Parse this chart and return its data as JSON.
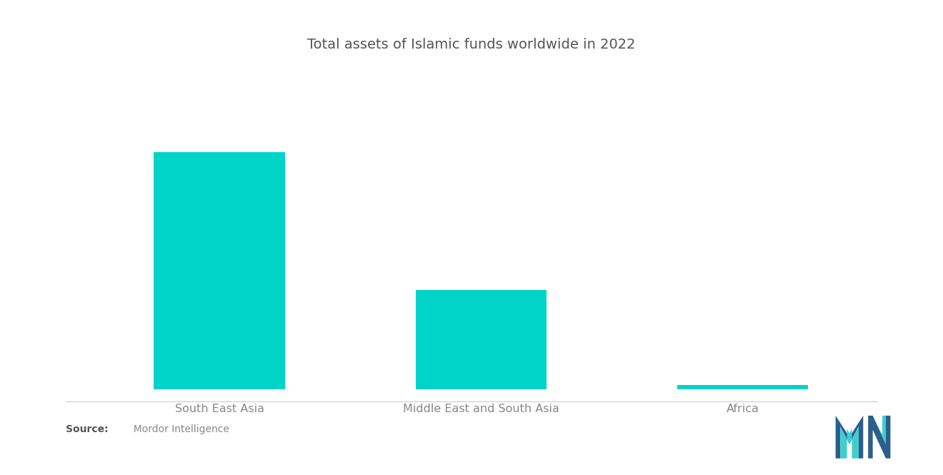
{
  "title": "Total assets of Islamic funds worldwide in 2022",
  "categories": [
    "South East Asia",
    "Middle East and South Asia",
    "Africa"
  ],
  "values": [
    100,
    42,
    2
  ],
  "bar_color": "#00D4C8",
  "background_color": "#ffffff",
  "title_fontsize": 14,
  "label_fontsize": 11.5,
  "source_bold": "Source:",
  "source_text": "  Mordor Intelligence",
  "ylim": [
    0,
    130
  ],
  "xlim": [
    -0.55,
    2.55
  ]
}
